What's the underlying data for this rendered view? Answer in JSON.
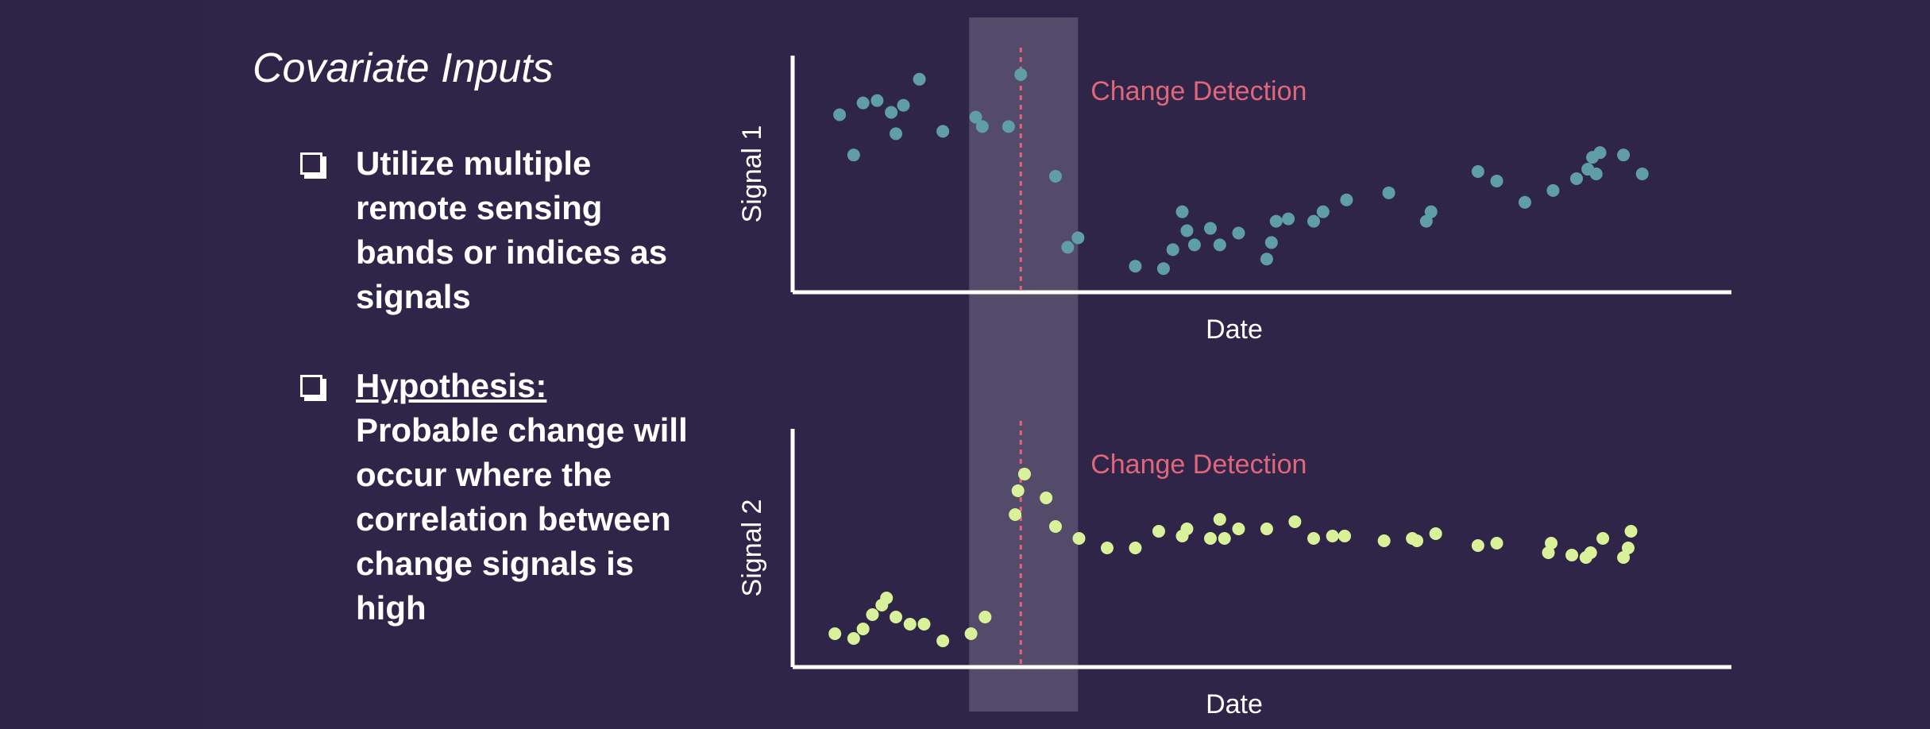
{
  "slide": {
    "title": "Covariate Inputs",
    "bullets": [
      {
        "text": "Utilize multiple remote sensing bands or indices as signals"
      },
      {
        "heading": "Hypothesis:",
        "text": "Probable change will occur where the correlation between change signals is high"
      }
    ]
  },
  "colors": {
    "background": "#2f2549",
    "signal1_points": "#5f9ea5",
    "signal2_points": "#d9f29a",
    "change_line": "#e0667a",
    "highlight_band": "#5a5170"
  },
  "chart_data": [
    {
      "type": "scatter",
      "xlabel": "Date",
      "ylabel": "Signal 1",
      "annotation": "Change Detection",
      "x_range": [
        0,
        100
      ],
      "y_range": [
        0,
        100
      ],
      "change_x": 24.3,
      "highlight_range": [
        18.8,
        30.4
      ],
      "points": [
        [
          5.0,
          75
        ],
        [
          6.5,
          58
        ],
        [
          7.5,
          80
        ],
        [
          9.0,
          81
        ],
        [
          10.5,
          76
        ],
        [
          11.0,
          67
        ],
        [
          11.8,
          79
        ],
        [
          13.5,
          90
        ],
        [
          16.0,
          68
        ],
        [
          19.5,
          74
        ],
        [
          20.2,
          70
        ],
        [
          23.0,
          70
        ],
        [
          24.3,
          92
        ],
        [
          28.0,
          49
        ],
        [
          29.3,
          19
        ],
        [
          30.4,
          23
        ],
        [
          36.5,
          11
        ],
        [
          39.5,
          10
        ],
        [
          40.5,
          18
        ],
        [
          41.5,
          34
        ],
        [
          42.0,
          26
        ],
        [
          42.8,
          20
        ],
        [
          44.5,
          27
        ],
        [
          45.5,
          20
        ],
        [
          47.5,
          25
        ],
        [
          50.5,
          14
        ],
        [
          51.0,
          21
        ],
        [
          51.5,
          30
        ],
        [
          52.8,
          31
        ],
        [
          55.5,
          30
        ],
        [
          56.5,
          34
        ],
        [
          59.0,
          39
        ],
        [
          63.5,
          42
        ],
        [
          67.5,
          30
        ],
        [
          68.0,
          34
        ],
        [
          73.0,
          51
        ],
        [
          75.0,
          47
        ],
        [
          78.0,
          38
        ],
        [
          81.0,
          43
        ],
        [
          83.5,
          48
        ],
        [
          84.7,
          52
        ],
        [
          85.2,
          57
        ],
        [
          85.6,
          50
        ],
        [
          86.0,
          59
        ],
        [
          88.5,
          58
        ],
        [
          90.5,
          50
        ]
      ]
    },
    {
      "type": "scatter",
      "xlabel": "Date",
      "ylabel": "Signal 2",
      "annotation": "Change Detection",
      "x_range": [
        0,
        100
      ],
      "y_range": [
        0,
        100
      ],
      "change_x": 24.3,
      "highlight_range": [
        18.8,
        30.4
      ],
      "points": [
        [
          4.5,
          14
        ],
        [
          6.5,
          12
        ],
        [
          7.5,
          16
        ],
        [
          8.5,
          22
        ],
        [
          9.5,
          26
        ],
        [
          10.0,
          29
        ],
        [
          11.0,
          21
        ],
        [
          12.5,
          18
        ],
        [
          14.0,
          18
        ],
        [
          16.0,
          11
        ],
        [
          19.0,
          14
        ],
        [
          20.5,
          21
        ],
        [
          23.7,
          64
        ],
        [
          24.0,
          74
        ],
        [
          24.7,
          81
        ],
        [
          27.0,
          71
        ],
        [
          28.0,
          59
        ],
        [
          30.5,
          54
        ],
        [
          33.5,
          50
        ],
        [
          36.5,
          50
        ],
        [
          39.0,
          57
        ],
        [
          41.5,
          55
        ],
        [
          42.0,
          58
        ],
        [
          44.5,
          54
        ],
        [
          45.5,
          62
        ],
        [
          46.0,
          54
        ],
        [
          47.5,
          58
        ],
        [
          50.5,
          58
        ],
        [
          53.5,
          61
        ],
        [
          55.5,
          54
        ],
        [
          57.5,
          55
        ],
        [
          58.8,
          55
        ],
        [
          63.0,
          53
        ],
        [
          66.0,
          54
        ],
        [
          66.5,
          53
        ],
        [
          68.5,
          56
        ],
        [
          73.0,
          51
        ],
        [
          75.0,
          52
        ],
        [
          80.5,
          48
        ],
        [
          80.8,
          52
        ],
        [
          83.0,
          47
        ],
        [
          84.5,
          46
        ],
        [
          85.0,
          48
        ],
        [
          86.3,
          54
        ],
        [
          88.5,
          46
        ],
        [
          89.0,
          50
        ],
        [
          89.3,
          57
        ]
      ]
    }
  ]
}
